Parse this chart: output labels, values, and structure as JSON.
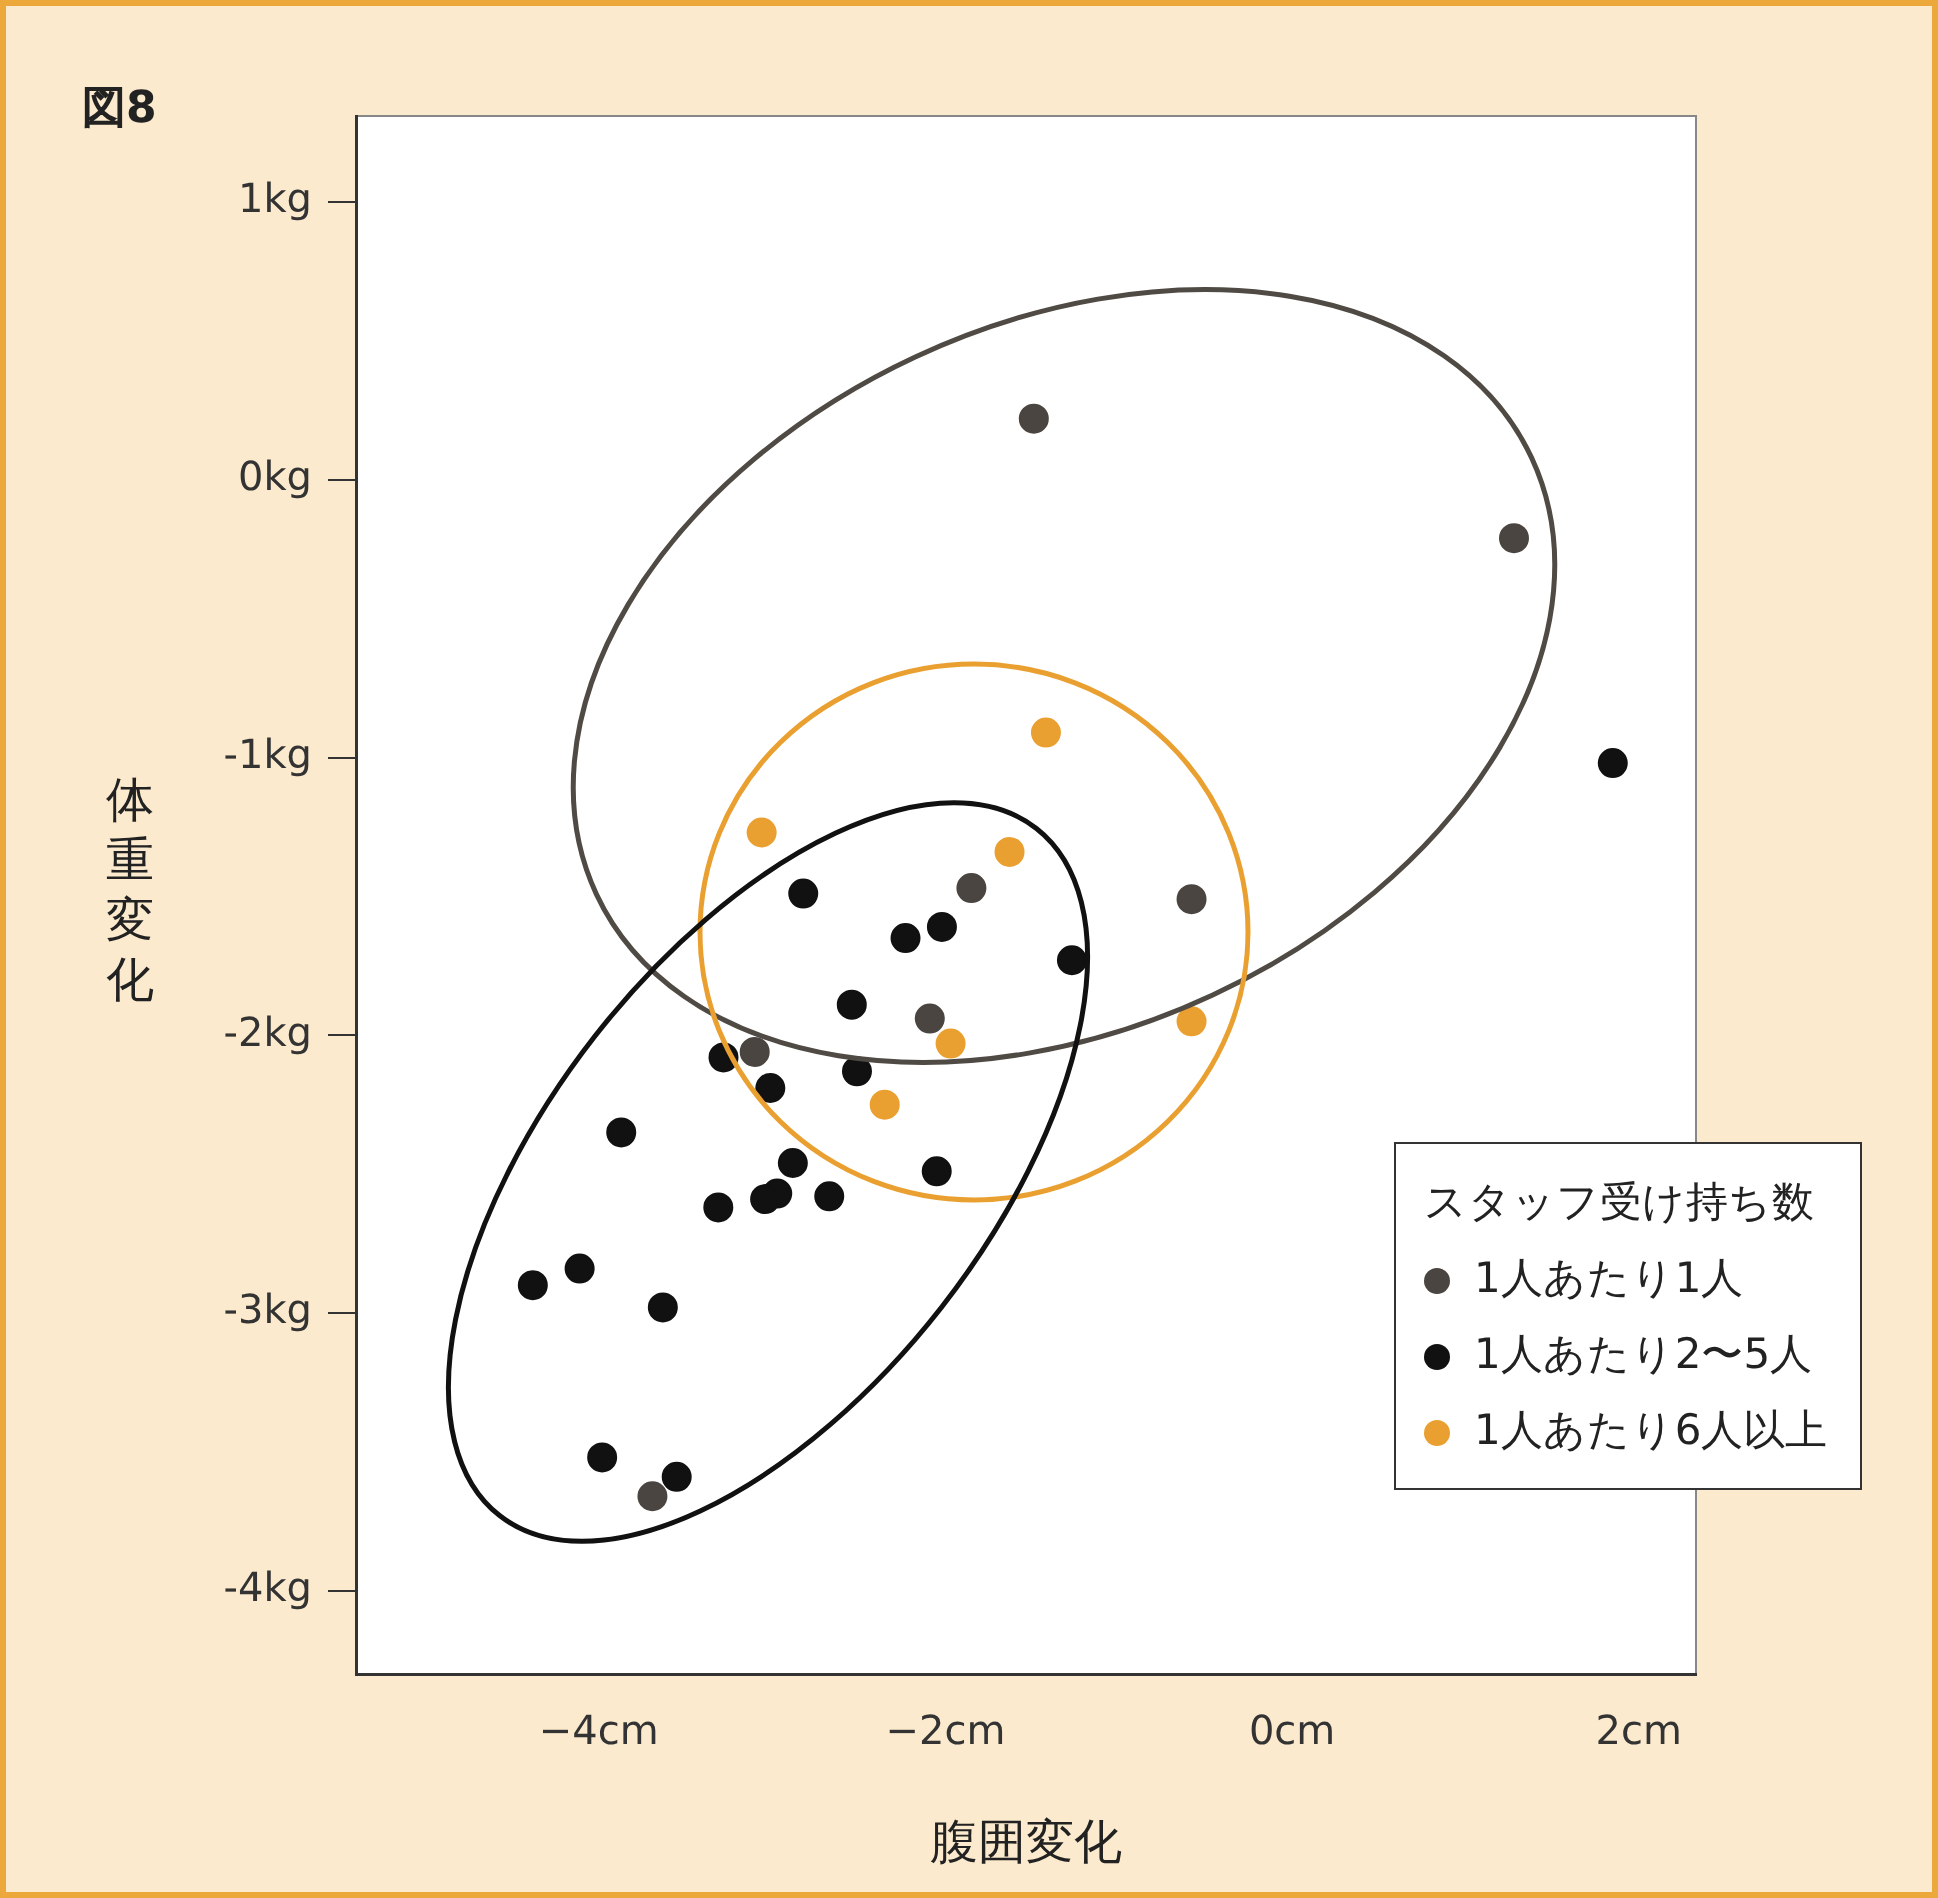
{
  "chart_data": {
    "type": "scatter",
    "title": "図8",
    "xlabel": "腹囲変化",
    "ylabel": "体重変化",
    "legend_title": "スタッフ受け持ち数",
    "legend": "bottom right",
    "marker": "circle",
    "grid": false,
    "xlim": [
      -5.4,
      2.33
    ],
    "xticks": [
      {
        "value": -4,
        "label": "−4cm"
      },
      {
        "value": -2,
        "label": "−2cm"
      },
      {
        "value": 0,
        "label": "0cm"
      },
      {
        "value": 2,
        "label": "2cm"
      }
    ],
    "ylim": [
      -4.3,
      1.31
    ],
    "yticks": [
      {
        "value": 1,
        "label": "1kg"
      },
      {
        "value": 0,
        "label": "0kg"
      },
      {
        "value": -1,
        "label": "-1kg"
      },
      {
        "value": -2,
        "label": "-2kg"
      },
      {
        "value": -3,
        "label": "-3kg"
      },
      {
        "value": -4,
        "label": "-4kg"
      }
    ],
    "series": [
      {
        "name": "1人あたり1人",
        "type": "scatter",
        "color": "#4a4540",
        "x": [
          -1.49,
          1.28,
          -1.85,
          -0.58,
          -2.09,
          -3.1,
          -3.69
        ],
        "values": [
          0.22,
          -0.21,
          -1.47,
          -1.51,
          -1.94,
          -2.06,
          -3.66
        ]
      },
      {
        "name": "1人あたり2〜5人",
        "type": "scatter",
        "color": "#111111",
        "x": [
          1.85,
          -2.82,
          -2.23,
          -2.02,
          -1.27,
          -2.54,
          -3.28,
          -3.01,
          -2.51,
          -3.87,
          -2.88,
          -2.97,
          -3.04,
          -2.67,
          -3.31,
          -2.05,
          -4.11,
          -4.38,
          -3.63,
          -3.98,
          -3.55
        ],
        "values": [
          -1.02,
          -1.49,
          -1.65,
          -1.61,
          -1.73,
          -1.89,
          -2.08,
          -2.19,
          -2.13,
          -2.35,
          -2.46,
          -2.57,
          -2.59,
          -2.58,
          -2.62,
          -2.49,
          -2.84,
          -2.9,
          -2.98,
          -3.52,
          -3.59
        ]
      },
      {
        "name": "1人あたり6人以上",
        "type": "scatter",
        "color": "#eaa030",
        "x": [
          -3.06,
          -1.63,
          -1.42,
          -1.97,
          -2.35,
          -0.58
        ],
        "values": [
          -1.27,
          -1.34,
          -0.91,
          -2.03,
          -2.25,
          -1.95
        ]
      }
    ]
  }
}
